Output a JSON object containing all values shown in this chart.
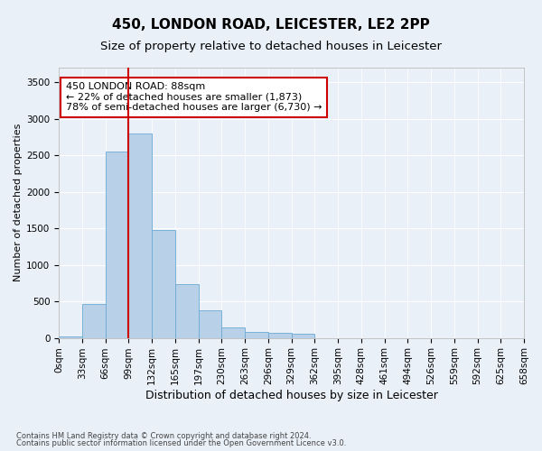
{
  "title1": "450, LONDON ROAD, LEICESTER, LE2 2PP",
  "title2": "Size of property relative to detached houses in Leicester",
  "xlabel": "Distribution of detached houses by size in Leicester",
  "ylabel": "Number of detached properties",
  "bar_values": [
    25,
    460,
    2550,
    2800,
    1480,
    740,
    380,
    140,
    80,
    75,
    60,
    0,
    0,
    0,
    0,
    0,
    0,
    0,
    0,
    0
  ],
  "bin_labels": [
    "0sqm",
    "33sqm",
    "66sqm",
    "99sqm",
    "132sqm",
    "165sqm",
    "197sqm",
    "230sqm",
    "263sqm",
    "296sqm",
    "329sqm",
    "362sqm",
    "395sqm",
    "428sqm",
    "461sqm",
    "494sqm",
    "526sqm",
    "559sqm",
    "592sqm",
    "625sqm",
    "658sqm"
  ],
  "bar_color": "#b8d0e8",
  "bar_edge_color": "#6aaad4",
  "annotation_text": "450 LONDON ROAD: 88sqm\n← 22% of detached houses are smaller (1,873)\n78% of semi-detached houses are larger (6,730) →",
  "annotation_box_color": "#ffffff",
  "annotation_box_edge": "#cc0000",
  "annotation_fontsize": 8,
  "title1_fontsize": 11,
  "title2_fontsize": 9.5,
  "xlabel_fontsize": 9,
  "ylabel_fontsize": 8,
  "tick_fontsize": 7.5,
  "ylim": [
    0,
    3700
  ],
  "yticks": [
    0,
    500,
    1000,
    1500,
    2000,
    2500,
    3000,
    3500
  ],
  "footer1": "Contains HM Land Registry data © Crown copyright and database right 2024.",
  "footer2": "Contains public sector information licensed under the Open Government Licence v3.0.",
  "bg_color": "#eaf0f8",
  "grid_color": "#ffffff"
}
